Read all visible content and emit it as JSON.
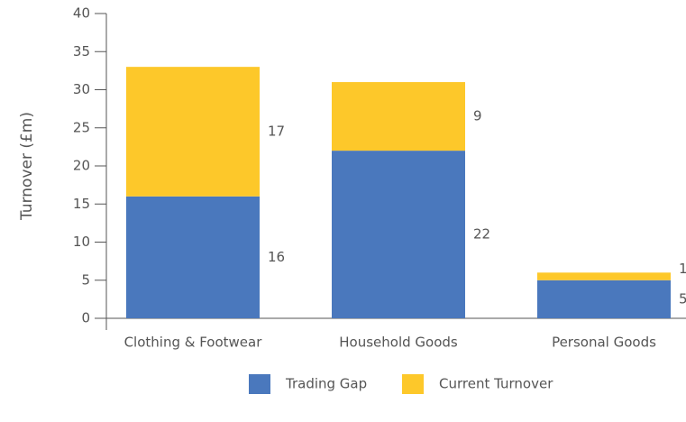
{
  "chart_data": {
    "type": "stacked_bar",
    "y_label": "Turnover (£m)",
    "categories": [
      "Clothing & Footwear",
      "Household Goods",
      "Personal Goods"
    ],
    "series": [
      {
        "name": "Trading Gap",
        "color": "#4a78bd",
        "values": [
          16,
          22,
          5
        ]
      },
      {
        "name": "Current Turnover",
        "color": "#fdc82a",
        "values": [
          17,
          9,
          1
        ]
      }
    ],
    "ylim": [
      0,
      40
    ],
    "yticks": [
      0,
      5,
      10,
      15,
      20,
      25,
      30,
      35,
      40
    ],
    "grid": false,
    "legend": "bottom"
  }
}
